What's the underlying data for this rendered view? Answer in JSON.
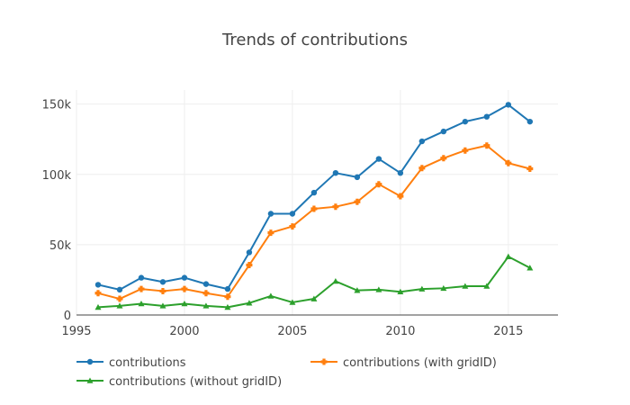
{
  "chart_data": {
    "type": "line",
    "title": "Trends of contributions",
    "xlabel": "",
    "ylabel": "",
    "x": [
      1996,
      1997,
      1998,
      1999,
      2000,
      2001,
      2002,
      2003,
      2004,
      2005,
      2006,
      2007,
      2008,
      2009,
      2010,
      2011,
      2012,
      2013,
      2014,
      2015,
      2016
    ],
    "xlim": [
      1995,
      2017.3
    ],
    "ylim": [
      0,
      160000
    ],
    "xticks": [
      1995,
      2000,
      2005,
      2010,
      2015
    ],
    "xtick_labels": [
      "1995",
      "2000",
      "2005",
      "2010",
      "2015"
    ],
    "yticks": [
      0,
      50000,
      100000,
      150000
    ],
    "ytick_labels": [
      "0",
      "50k",
      "100k",
      "150k"
    ],
    "grid": true,
    "legend_position": "bottom",
    "series": [
      {
        "name": "contributions",
        "color": "#1f77b4",
        "marker": "circle",
        "values": [
          21500,
          18000,
          26500,
          23500,
          26500,
          22000,
          18500,
          44500,
          72000,
          72000,
          87000,
          101000,
          98000,
          111000,
          101000,
          123500,
          130500,
          137500,
          141000,
          149500,
          137500
        ]
      },
      {
        "name": "contributions (with gridID)",
        "color": "#ff7f0e",
        "marker": "cross",
        "values": [
          15500,
          11500,
          18500,
          17000,
          18500,
          15500,
          13000,
          35500,
          58500,
          63000,
          75500,
          77000,
          80500,
          93000,
          84500,
          104500,
          111500,
          117000,
          120500,
          108000,
          104000
        ]
      },
      {
        "name": "contributions (without gridID)",
        "color": "#2ca02c",
        "marker": "triangle",
        "values": [
          5500,
          6500,
          8000,
          6500,
          8000,
          6500,
          5500,
          8500,
          13500,
          9000,
          11500,
          24000,
          17500,
          18000,
          16500,
          18500,
          19000,
          20500,
          20500,
          41500,
          33500
        ]
      }
    ]
  }
}
